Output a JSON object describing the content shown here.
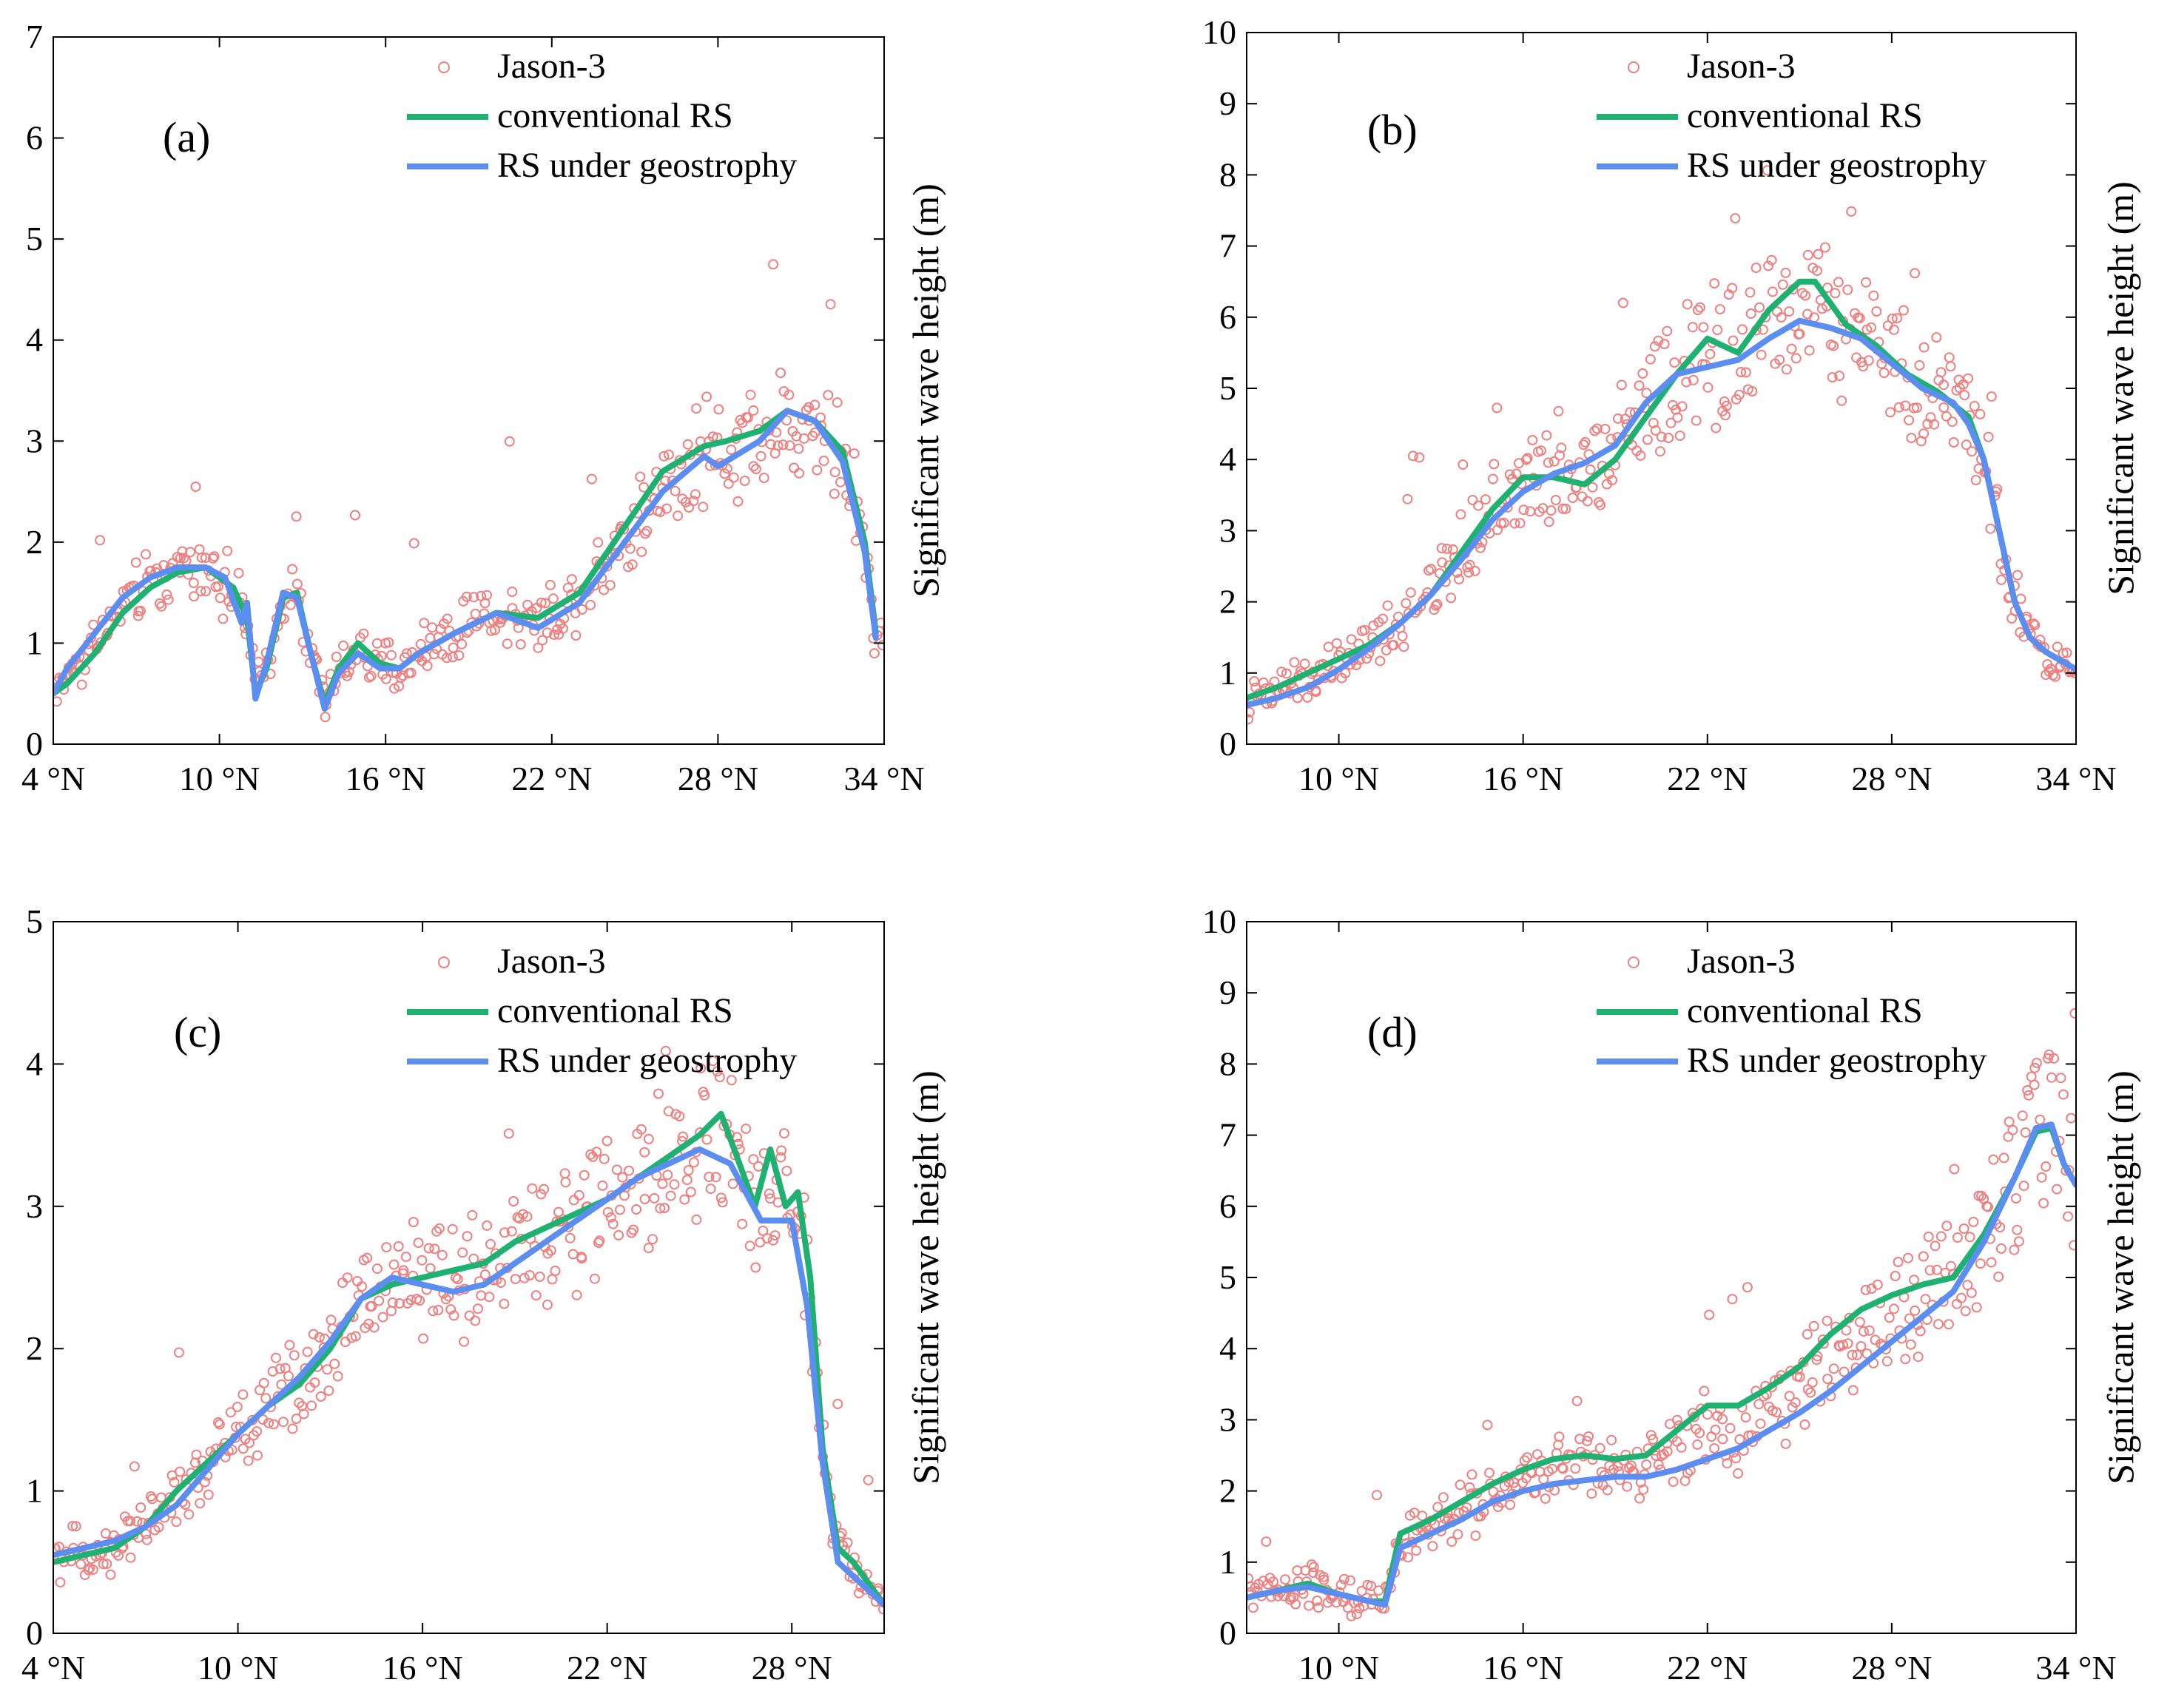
{
  "colors": {
    "jason3": "#f08080",
    "conventional": "#1fb172",
    "geostrophy": "#5b8ef0",
    "axis": "#000000"
  },
  "chart_data": [
    {
      "type": "line",
      "panel_label": "(a)",
      "ylabel": "Significant wave height (m)",
      "xlim": [
        4,
        34
      ],
      "ylim": [
        0,
        7
      ],
      "xticks": [
        4,
        10,
        16,
        22,
        28,
        34
      ],
      "xtick_labels": [
        "4 °N",
        "10 °N",
        "16 °N",
        "22 °N",
        "28 °N",
        "34 °N"
      ],
      "yticks": [
        0,
        1,
        2,
        3,
        4,
        5,
        6,
        7
      ],
      "ytick_labels": [
        "0",
        "1",
        "2",
        "3",
        "4",
        "5",
        "6",
        "7"
      ],
      "legend": {
        "placement": "top-center",
        "entries": [
          "Jason-3",
          "conventional RS",
          "RS under geostrophy"
        ]
      },
      "series": [
        {
          "name": "conventional RS",
          "x": [
            4.0,
            4.5,
            5.5,
            6.5,
            7.5,
            8.5,
            9.5,
            10.5,
            11.0,
            11.3,
            11.7,
            12.3,
            12.8,
            13.3,
            13.8,
            14.3,
            15.0,
            15.8,
            16.5,
            17.2,
            18.5,
            20.0,
            21.5,
            23.0,
            24.5,
            26.0,
            27.5,
            28.3,
            29.5,
            30.5,
            31.5,
            32.5,
            33.3,
            33.7
          ],
          "y": [
            0.5,
            0.6,
            0.9,
            1.3,
            1.55,
            1.7,
            1.75,
            1.55,
            1.25,
            0.5,
            0.75,
            1.45,
            1.5,
            0.9,
            0.4,
            0.75,
            1.0,
            0.8,
            0.75,
            0.9,
            1.1,
            1.3,
            1.25,
            1.5,
            2.1,
            2.7,
            2.95,
            3.0,
            3.1,
            3.3,
            3.2,
            2.9,
            2.0,
            1.1
          ]
        },
        {
          "name": "RS under geostrophy",
          "x": [
            4.0,
            4.5,
            5.5,
            6.5,
            7.5,
            8.5,
            9.5,
            10.2,
            10.8,
            11.0,
            11.3,
            11.7,
            12.3,
            12.8,
            13.3,
            13.8,
            14.3,
            15.0,
            15.8,
            16.5,
            17.2,
            18.5,
            20.0,
            21.5,
            23.0,
            24.5,
            26.0,
            27.5,
            28.0,
            29.5,
            30.5,
            31.5,
            32.5,
            33.3,
            33.7
          ],
          "y": [
            0.5,
            0.75,
            1.1,
            1.45,
            1.65,
            1.75,
            1.75,
            1.65,
            1.2,
            1.4,
            0.45,
            0.8,
            1.5,
            1.45,
            0.9,
            0.35,
            0.7,
            0.9,
            0.75,
            0.75,
            0.9,
            1.1,
            1.3,
            1.15,
            1.4,
            1.95,
            2.5,
            2.85,
            2.75,
            3.0,
            3.3,
            3.2,
            2.8,
            1.9,
            1.05
          ]
        }
      ]
    },
    {
      "type": "line",
      "panel_label": "(b)",
      "ylabel": "Significant wave height (m)",
      "xlim": [
        7,
        34
      ],
      "ylim": [
        0,
        10
      ],
      "xticks": [
        10,
        16,
        22,
        28,
        34
      ],
      "xtick_labels": [
        "10 °N",
        "16 °N",
        "22 °N",
        "28 °N",
        "34 °N"
      ],
      "yticks": [
        0,
        1,
        2,
        3,
        4,
        5,
        6,
        7,
        8,
        9,
        10
      ],
      "ytick_labels": [
        "0",
        "1",
        "2",
        "3",
        "4",
        "5",
        "6",
        "7",
        "8",
        "9",
        "10"
      ],
      "legend": {
        "placement": "top-right",
        "entries": [
          "Jason-3",
          "conventional RS",
          "RS under geostrophy"
        ]
      },
      "series": [
        {
          "name": "conventional RS",
          "x": [
            7.0,
            8.0,
            9.0,
            10.0,
            11.0,
            12.0,
            13.0,
            14.0,
            15.0,
            16.0,
            17.0,
            18.0,
            19.0,
            20.0,
            21.0,
            22.0,
            23.0,
            24.0,
            25.0,
            25.5,
            26.5,
            27.5,
            28.5,
            29.5,
            30.5,
            31.0,
            31.5,
            32.0,
            32.5,
            33.0,
            34.0
          ],
          "y": [
            0.65,
            0.8,
            1.0,
            1.2,
            1.4,
            1.7,
            2.1,
            2.7,
            3.3,
            3.75,
            3.75,
            3.65,
            4.0,
            4.6,
            5.2,
            5.7,
            5.5,
            6.1,
            6.5,
            6.5,
            5.9,
            5.6,
            5.2,
            4.95,
            4.6,
            4.0,
            3.0,
            2.0,
            1.5,
            1.3,
            1.05
          ]
        },
        {
          "name": "RS under geostrophy",
          "x": [
            7.0,
            8.0,
            9.0,
            10.0,
            11.0,
            12.0,
            13.0,
            14.0,
            15.0,
            16.0,
            17.0,
            18.0,
            19.0,
            20.0,
            21.0,
            22.0,
            23.0,
            24.0,
            25.0,
            26.0,
            27.0,
            28.0,
            29.0,
            30.0,
            30.5,
            31.0,
            31.5,
            32.0,
            32.5,
            33.0,
            34.0
          ],
          "y": [
            0.55,
            0.65,
            0.8,
            1.05,
            1.35,
            1.7,
            2.1,
            2.6,
            3.15,
            3.55,
            3.8,
            3.95,
            4.2,
            4.8,
            5.2,
            5.3,
            5.4,
            5.7,
            5.95,
            5.85,
            5.7,
            5.35,
            5.0,
            4.8,
            4.5,
            4.0,
            3.0,
            2.0,
            1.5,
            1.3,
            1.05
          ]
        }
      ]
    },
    {
      "type": "line",
      "panel_label": "(c)",
      "ylabel": "Significant wave height (m)",
      "xlim": [
        4,
        31
      ],
      "ylim": [
        0,
        5
      ],
      "xticks": [
        4,
        10,
        16,
        22,
        28
      ],
      "xtick_labels": [
        "4 °N",
        "10 °N",
        "16 °N",
        "22 °N",
        "28 °N"
      ],
      "yticks": [
        0,
        1,
        2,
        3,
        4,
        5
      ],
      "ytick_labels": [
        "0",
        "1",
        "2",
        "3",
        "4",
        "5"
      ],
      "legend": {
        "placement": "top-center",
        "entries": [
          "Jason-3",
          "conventional RS",
          "RS under geostrophy"
        ]
      },
      "series": [
        {
          "name": "conventional RS",
          "x": [
            4.0,
            5.0,
            6.0,
            7.0,
            8.0,
            9.0,
            10.0,
            11.0,
            12.0,
            13.0,
            14.0,
            15.0,
            16.0,
            17.0,
            18.0,
            19.0,
            20.0,
            21.0,
            22.0,
            23.0,
            24.0,
            25.0,
            25.7,
            26.3,
            26.8,
            27.3,
            27.8,
            28.2,
            28.6,
            29.0,
            29.5,
            30.0,
            30.5,
            31.0
          ],
          "y": [
            0.5,
            0.55,
            0.6,
            0.75,
            1.0,
            1.2,
            1.4,
            1.6,
            1.75,
            2.0,
            2.35,
            2.45,
            2.5,
            2.55,
            2.6,
            2.75,
            2.85,
            2.95,
            3.05,
            3.2,
            3.35,
            3.5,
            3.65,
            3.3,
            3.0,
            3.4,
            3.0,
            3.1,
            2.5,
            1.3,
            0.6,
            0.5,
            0.35,
            0.2
          ]
        },
        {
          "name": "RS under geostrophy",
          "x": [
            4.0,
            5.0,
            6.0,
            7.0,
            8.0,
            9.0,
            10.0,
            11.0,
            12.0,
            13.0,
            14.0,
            15.0,
            16.0,
            17.0,
            18.0,
            19.0,
            20.0,
            21.0,
            22.0,
            23.0,
            24.0,
            25.0,
            26.0,
            27.0,
            28.0,
            28.5,
            29.0,
            29.5,
            30.0,
            30.5,
            31.0
          ],
          "y": [
            0.55,
            0.6,
            0.65,
            0.75,
            0.9,
            1.15,
            1.4,
            1.6,
            1.8,
            2.05,
            2.35,
            2.5,
            2.45,
            2.4,
            2.45,
            2.6,
            2.75,
            2.9,
            3.05,
            3.2,
            3.3,
            3.4,
            3.3,
            2.9,
            2.9,
            2.3,
            1.2,
            0.5,
            0.4,
            0.3,
            0.2
          ]
        }
      ]
    },
    {
      "type": "line",
      "panel_label": "(d)",
      "ylabel": "Significant wave height (m)",
      "xlim": [
        7,
        34
      ],
      "ylim": [
        0,
        10
      ],
      "xticks": [
        10,
        16,
        22,
        28,
        34
      ],
      "xtick_labels": [
        "10 °N",
        "16 °N",
        "22 °N",
        "28 °N",
        "34 °N"
      ],
      "yticks": [
        0,
        1,
        2,
        3,
        4,
        5,
        6,
        7,
        8,
        9,
        10
      ],
      "ytick_labels": [
        "0",
        "1",
        "2",
        "3",
        "4",
        "5",
        "6",
        "7",
        "8",
        "9",
        "10"
      ],
      "legend": {
        "placement": "top-right",
        "entries": [
          "Jason-3",
          "conventional RS",
          "RS under geostrophy"
        ]
      },
      "series": [
        {
          "name": "conventional RS",
          "x": [
            7.0,
            8.0,
            9.0,
            10.0,
            11.0,
            11.5,
            12.0,
            13.0,
            14.0,
            15.0,
            16.0,
            17.0,
            18.0,
            19.0,
            20.0,
            21.0,
            22.0,
            23.0,
            24.0,
            25.0,
            26.0,
            27.0,
            28.0,
            29.0,
            30.0,
            31.0,
            32.0,
            32.7,
            33.2,
            33.6,
            34.0
          ],
          "y": [
            0.5,
            0.6,
            0.7,
            0.55,
            0.45,
            0.45,
            1.4,
            1.6,
            1.85,
            2.1,
            2.3,
            2.45,
            2.5,
            2.45,
            2.5,
            2.85,
            3.2,
            3.2,
            3.45,
            3.75,
            4.2,
            4.55,
            4.75,
            4.9,
            5.0,
            5.6,
            6.4,
            7.05,
            7.1,
            6.6,
            6.3
          ]
        },
        {
          "name": "RS under geostrophy",
          "x": [
            7.0,
            8.0,
            9.0,
            10.0,
            11.0,
            11.5,
            12.0,
            13.0,
            14.0,
            15.0,
            16.0,
            17.0,
            18.0,
            19.0,
            20.0,
            21.0,
            22.0,
            23.0,
            24.0,
            25.0,
            26.0,
            27.0,
            28.0,
            29.0,
            30.0,
            31.0,
            32.0,
            32.7,
            33.2,
            33.6,
            34.0
          ],
          "y": [
            0.5,
            0.6,
            0.65,
            0.55,
            0.45,
            0.4,
            1.2,
            1.4,
            1.6,
            1.85,
            2.0,
            2.1,
            2.15,
            2.2,
            2.2,
            2.3,
            2.45,
            2.6,
            2.85,
            3.1,
            3.4,
            3.75,
            4.1,
            4.45,
            4.8,
            5.5,
            6.4,
            7.1,
            7.15,
            6.6,
            6.3
          ]
        }
      ]
    }
  ]
}
